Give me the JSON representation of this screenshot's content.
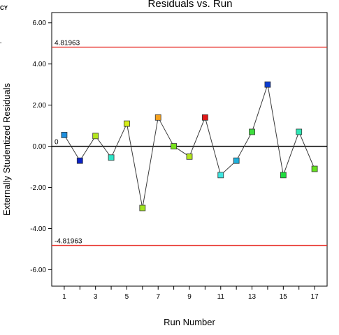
{
  "edge_text": {
    "top": "CY",
    "mid": "."
  },
  "chart_data": {
    "type": "scatter",
    "title": "Residuals vs. Run",
    "xlabel": "Run Number",
    "ylabel": "Externally Studentized Residuals",
    "xlim": [
      0.2,
      17.8
    ],
    "ylim": [
      -6.8,
      6.5
    ],
    "x_ticks": [
      1,
      3,
      5,
      7,
      9,
      11,
      13,
      15,
      17
    ],
    "x_minor_ticks": [
      2,
      4,
      6,
      8,
      10,
      12,
      14,
      16
    ],
    "y_ticks": [
      {
        "value": 6,
        "label": "6.00"
      },
      {
        "value": 4,
        "label": "4.00"
      },
      {
        "value": 2,
        "label": "2.00"
      },
      {
        "value": 0,
        "label": "0.00"
      },
      {
        "value": -2,
        "label": "-2.00"
      },
      {
        "value": -4,
        "label": "-4.00"
      },
      {
        "value": -6,
        "label": "-6.00"
      }
    ],
    "reference_lines": [
      {
        "value": 4.81963,
        "label": "4.81963",
        "color": "#e8302a"
      },
      {
        "value": -4.81963,
        "label": "-4.81963",
        "color": "#e8302a"
      },
      {
        "value": 0,
        "label": "0",
        "color": "#000000"
      }
    ],
    "points": [
      {
        "x": 1,
        "y": 0.55,
        "color": "#1e90e0"
      },
      {
        "x": 2,
        "y": -0.7,
        "color": "#0a22c8"
      },
      {
        "x": 3,
        "y": 0.5,
        "color": "#b4e61e"
      },
      {
        "x": 4,
        "y": -0.55,
        "color": "#2ee6c8"
      },
      {
        "x": 5,
        "y": 1.1,
        "color": "#d6ee18"
      },
      {
        "x": 6,
        "y": -3.0,
        "color": "#a0e61e"
      },
      {
        "x": 7,
        "y": 1.4,
        "color": "#f5a21e"
      },
      {
        "x": 8,
        "y": 0.0,
        "color": "#78e21e"
      },
      {
        "x": 9,
        "y": -0.5,
        "color": "#b4e61e"
      },
      {
        "x": 10,
        "y": 1.4,
        "color": "#e01818"
      },
      {
        "x": 11,
        "y": -1.4,
        "color": "#3ee6e0"
      },
      {
        "x": 12,
        "y": -0.7,
        "color": "#1eb0dc"
      },
      {
        "x": 13,
        "y": 0.7,
        "color": "#3ede3e"
      },
      {
        "x": 14,
        "y": 3.0,
        "color": "#0a3cd2"
      },
      {
        "x": 15,
        "y": -1.4,
        "color": "#1edc3e"
      },
      {
        "x": 16,
        "y": 0.7,
        "color": "#2ee6b4"
      },
      {
        "x": 17,
        "y": -1.1,
        "color": "#64e21e"
      }
    ],
    "connecting_line_color": "#3a3a3a",
    "grid": false,
    "legend": "none"
  }
}
